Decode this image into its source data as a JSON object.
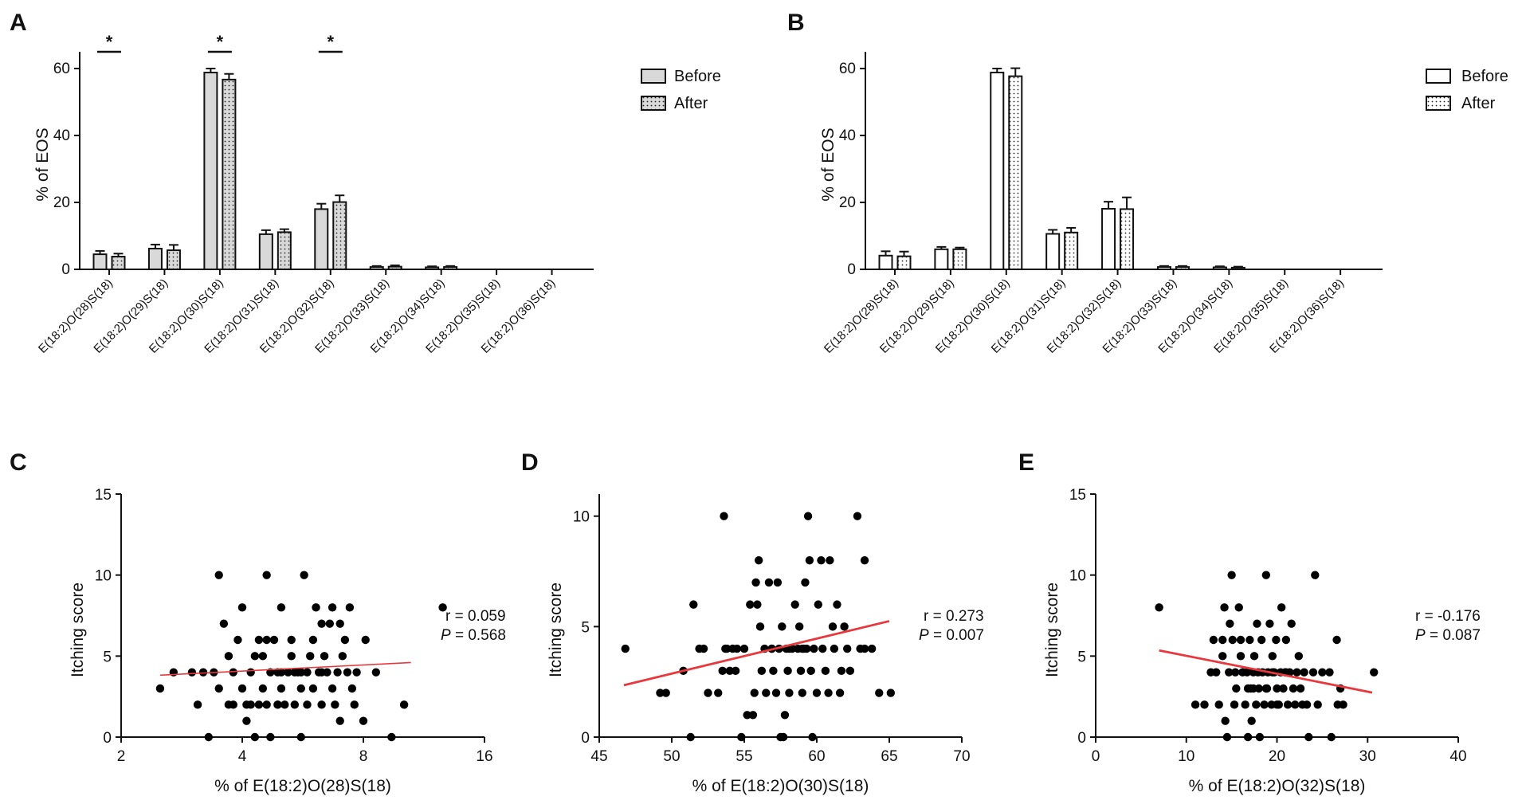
{
  "colors": {
    "bar_before_filled": "#d9d9d9",
    "bar_after_filled": "#d9d9d9",
    "bar_open": "#ffffff",
    "stroke": "#111111",
    "fit_line": "#e8383d",
    "point": "#000000"
  },
  "chart_data": [
    {
      "id": "A",
      "type": "bar",
      "panel_label": "A",
      "style": "filled",
      "ylabel": "% of EOS",
      "ylim": [
        0,
        65
      ],
      "yticks": [
        0,
        20,
        40,
        60
      ],
      "categories": [
        "E(18:2)O(28)S(18)",
        "E(18:2)O(29)S(18)",
        "E(18:2)O(30)S(18)",
        "E(18:2)O(31)S(18)",
        "E(18:2)O(32)S(18)",
        "E(18:2)O(33)S(18)",
        "E(18:2)O(34)S(18)",
        "E(18:2)O(35)S(18)",
        "E(18:2)O(36)S(18)"
      ],
      "series": [
        {
          "name": "Before",
          "values": [
            4.5,
            6.2,
            58.8,
            10.5,
            18.0,
            0.7,
            0.6,
            0,
            0
          ],
          "errors": [
            1.0,
            1.2,
            1.2,
            1.2,
            1.6,
            0.3,
            0.3,
            0,
            0
          ]
        },
        {
          "name": "After",
          "values": [
            3.8,
            5.7,
            56.7,
            11.1,
            20.1,
            0.8,
            0.7,
            0,
            0
          ],
          "errors": [
            0.9,
            1.6,
            1.7,
            0.9,
            2.0,
            0.4,
            0.3,
            0,
            0
          ]
        }
      ],
      "significance": [
        {
          "category_index": 0,
          "label": "*"
        },
        {
          "category_index": 2,
          "label": "*"
        },
        {
          "category_index": 4,
          "label": "*"
        }
      ],
      "legend": [
        "Before",
        "After"
      ]
    },
    {
      "id": "B",
      "type": "bar",
      "panel_label": "B",
      "style": "open",
      "ylabel": "% of EOS",
      "ylim": [
        0,
        65
      ],
      "yticks": [
        0,
        20,
        40,
        60
      ],
      "categories": [
        "E(18:2)O(28)S(18)",
        "E(18:2)O(29)S(18)",
        "E(18:2)O(30)S(18)",
        "E(18:2)O(31)S(18)",
        "E(18:2)O(32)S(18)",
        "E(18:2)O(33)S(18)",
        "E(18:2)O(34)S(18)",
        "E(18:2)O(35)S(18)",
        "E(18:2)O(36)S(18)"
      ],
      "series": [
        {
          "name": "Before",
          "values": [
            4.1,
            6.0,
            58.8,
            10.6,
            18.1,
            0.7,
            0.6,
            0,
            0
          ],
          "errors": [
            1.3,
            0.7,
            1.2,
            1.2,
            2.1,
            0.3,
            0.3,
            0,
            0
          ]
        },
        {
          "name": "After",
          "values": [
            3.9,
            6.0,
            57.7,
            11.0,
            18.0,
            0.7,
            0.5,
            0,
            0
          ],
          "errors": [
            1.4,
            0.5,
            2.4,
            1.4,
            3.5,
            0.3,
            0.3,
            0,
            0
          ]
        }
      ],
      "significance": [],
      "legend": [
        "Before",
        "After"
      ]
    },
    {
      "id": "C",
      "type": "scatter",
      "panel_label": "C",
      "xlabel": "% of E(18:2)O(28)S(18)",
      "ylabel": "Itching score",
      "xscale": "log2",
      "xlim": [
        2,
        16
      ],
      "xticks": [
        2,
        4,
        8,
        16
      ],
      "ylim": [
        0,
        15
      ],
      "yticks": [
        0,
        5,
        10,
        15
      ],
      "r_text": "r = 0.059",
      "p_label": "P",
      "p_value_text": " = 0.568",
      "fit": {
        "x": [
          2.5,
          10.5
        ],
        "y": [
          3.82,
          4.6
        ]
      },
      "points": [
        [
          2.5,
          3
        ],
        [
          2.7,
          4
        ],
        [
          3.0,
          4
        ],
        [
          3.1,
          2
        ],
        [
          3.3,
          0
        ],
        [
          3.2,
          4
        ],
        [
          3.6,
          7
        ],
        [
          3.4,
          4
        ],
        [
          3.5,
          3
        ],
        [
          3.5,
          10
        ],
        [
          3.7,
          5
        ],
        [
          3.7,
          2
        ],
        [
          3.8,
          4
        ],
        [
          3.9,
          6
        ],
        [
          4.0,
          8
        ],
        [
          4.0,
          3
        ],
        [
          4.1,
          1
        ],
        [
          4.2,
          2
        ],
        [
          4.2,
          4
        ],
        [
          4.3,
          5
        ],
        [
          4.3,
          0
        ],
        [
          4.4,
          6
        ],
        [
          4.4,
          2
        ],
        [
          4.5,
          5
        ],
        [
          4.5,
          3
        ],
        [
          4.6,
          10
        ],
        [
          4.6,
          6
        ],
        [
          4.7,
          4
        ],
        [
          4.7,
          0
        ],
        [
          4.8,
          6
        ],
        [
          4.9,
          2
        ],
        [
          4.9,
          4
        ],
        [
          5.0,
          8
        ],
        [
          5.0,
          3
        ],
        [
          5.1,
          2
        ],
        [
          5.2,
          4
        ],
        [
          5.3,
          5
        ],
        [
          5.3,
          6
        ],
        [
          5.4,
          2
        ],
        [
          5.5,
          4
        ],
        [
          5.6,
          3
        ],
        [
          5.6,
          0
        ],
        [
          5.7,
          10
        ],
        [
          5.8,
          4
        ],
        [
          5.8,
          2
        ],
        [
          5.9,
          5
        ],
        [
          6.0,
          6
        ],
        [
          6.0,
          3
        ],
        [
          6.1,
          8
        ],
        [
          6.2,
          4
        ],
        [
          6.3,
          2
        ],
        [
          6.3,
          7
        ],
        [
          6.4,
          5
        ],
        [
          6.5,
          4
        ],
        [
          6.6,
          7
        ],
        [
          6.7,
          3
        ],
        [
          6.7,
          8
        ],
        [
          6.8,
          2
        ],
        [
          6.9,
          4
        ],
        [
          7.0,
          7
        ],
        [
          7.0,
          1
        ],
        [
          7.1,
          5
        ],
        [
          7.2,
          6
        ],
        [
          7.3,
          4
        ],
        [
          7.4,
          8
        ],
        [
          7.5,
          3
        ],
        [
          7.6,
          2
        ],
        [
          7.7,
          4
        ],
        [
          8.0,
          1
        ],
        [
          8.1,
          6
        ],
        [
          8.6,
          4
        ],
        [
          9.4,
          0
        ],
        [
          10.1,
          2
        ],
        [
          12.6,
          8
        ],
        [
          4.1,
          2
        ],
        [
          4.9,
          2
        ],
        [
          5.4,
          4
        ],
        [
          3.8,
          2
        ],
        [
          5.0,
          4
        ],
        [
          6.3,
          4
        ],
        [
          4.6,
          2
        ],
        [
          5.6,
          4
        ]
      ]
    },
    {
      "id": "D",
      "type": "scatter",
      "panel_label": "D",
      "xlabel": "% of E(18:2)O(30)S(18)",
      "ylabel": "Itching score",
      "xscale": "linear",
      "xlim": [
        45,
        70
      ],
      "xticks": [
        45,
        50,
        55,
        60,
        65,
        70
      ],
      "ylim": [
        0,
        11
      ],
      "yticks": [
        0,
        5,
        10
      ],
      "r_text": "r = 0.273",
      "p_label": "P",
      "p_value_text": " = 0.007",
      "fit": {
        "x": [
          46.7,
          65.0
        ],
        "y": [
          2.35,
          5.25
        ]
      },
      "points": [
        [
          46.8,
          4
        ],
        [
          49.2,
          2
        ],
        [
          49.6,
          2
        ],
        [
          50.8,
          3
        ],
        [
          51.3,
          0
        ],
        [
          51.5,
          6
        ],
        [
          51.9,
          4
        ],
        [
          52.2,
          4
        ],
        [
          52.5,
          2
        ],
        [
          53.2,
          2
        ],
        [
          53.5,
          3
        ],
        [
          53.6,
          10
        ],
        [
          53.7,
          4
        ],
        [
          53.8,
          4
        ],
        [
          54.0,
          3
        ],
        [
          54.2,
          4
        ],
        [
          54.4,
          3
        ],
        [
          54.5,
          4
        ],
        [
          54.8,
          0
        ],
        [
          55.0,
          4
        ],
        [
          55.2,
          1
        ],
        [
          55.4,
          6
        ],
        [
          55.6,
          1
        ],
        [
          55.7,
          2
        ],
        [
          55.8,
          7
        ],
        [
          55.9,
          6
        ],
        [
          56.0,
          8
        ],
        [
          56.1,
          5
        ],
        [
          56.2,
          3
        ],
        [
          56.4,
          4
        ],
        [
          56.5,
          2
        ],
        [
          56.7,
          7
        ],
        [
          56.9,
          4
        ],
        [
          57.0,
          3
        ],
        [
          57.2,
          2
        ],
        [
          57.3,
          7
        ],
        [
          57.4,
          4
        ],
        [
          57.5,
          0
        ],
        [
          57.6,
          5
        ],
        [
          57.7,
          0
        ],
        [
          57.8,
          1
        ],
        [
          57.9,
          4
        ],
        [
          58.0,
          3
        ],
        [
          58.1,
          2
        ],
        [
          58.3,
          4
        ],
        [
          58.5,
          6
        ],
        [
          58.7,
          4
        ],
        [
          58.8,
          5
        ],
        [
          58.9,
          3
        ],
        [
          59.0,
          2
        ],
        [
          59.1,
          4
        ],
        [
          59.2,
          7
        ],
        [
          59.3,
          4
        ],
        [
          59.4,
          10
        ],
        [
          59.5,
          8
        ],
        [
          59.6,
          3
        ],
        [
          59.7,
          0
        ],
        [
          59.8,
          4
        ],
        [
          60.0,
          2
        ],
        [
          60.1,
          6
        ],
        [
          60.3,
          8
        ],
        [
          60.4,
          4
        ],
        [
          60.6,
          3
        ],
        [
          60.8,
          2
        ],
        [
          60.9,
          8
        ],
        [
          61.1,
          5
        ],
        [
          61.2,
          4
        ],
        [
          61.4,
          6
        ],
        [
          61.6,
          2
        ],
        [
          61.7,
          3
        ],
        [
          61.9,
          5
        ],
        [
          62.1,
          4
        ],
        [
          62.3,
          3
        ],
        [
          62.8,
          10
        ],
        [
          63.0,
          4
        ],
        [
          63.3,
          4
        ],
        [
          63.3,
          8
        ],
        [
          63.8,
          4
        ],
        [
          64.3,
          2
        ],
        [
          65.1,
          2
        ],
        [
          56.9,
          4
        ],
        [
          58.1,
          4
        ],
        [
          59.0,
          4
        ]
      ]
    },
    {
      "id": "E",
      "type": "scatter",
      "panel_label": "E",
      "xlabel": "% of E(18:2)O(32)S(18)",
      "ylabel": "Itching score",
      "xscale": "linear",
      "xlim": [
        0,
        40
      ],
      "xticks": [
        0,
        10,
        20,
        30,
        40
      ],
      "ylim": [
        0,
        15
      ],
      "yticks": [
        0,
        5,
        10,
        15
      ],
      "r_text": "r = -0.176",
      "p_label": "P",
      "p_value_text": " = 0.087",
      "fit": {
        "x": [
          7.0,
          30.5
        ],
        "y": [
          5.35,
          2.75
        ]
      },
      "points": [
        [
          7.0,
          8
        ],
        [
          11.0,
          2
        ],
        [
          12.0,
          2
        ],
        [
          12.7,
          4
        ],
        [
          13.0,
          6
        ],
        [
          13.3,
          4
        ],
        [
          13.6,
          2
        ],
        [
          14.0,
          5
        ],
        [
          14.0,
          6
        ],
        [
          14.2,
          8
        ],
        [
          14.3,
          1
        ],
        [
          14.5,
          0
        ],
        [
          14.7,
          4
        ],
        [
          14.8,
          7
        ],
        [
          15.0,
          10
        ],
        [
          15.1,
          6
        ],
        [
          15.3,
          2
        ],
        [
          15.4,
          4
        ],
        [
          15.5,
          3
        ],
        [
          15.8,
          8
        ],
        [
          16.0,
          5
        ],
        [
          16.0,
          6
        ],
        [
          16.2,
          4
        ],
        [
          16.5,
          2
        ],
        [
          16.7,
          4
        ],
        [
          16.8,
          0
        ],
        [
          17.0,
          6
        ],
        [
          17.1,
          3
        ],
        [
          17.2,
          1
        ],
        [
          17.4,
          4
        ],
        [
          17.5,
          5
        ],
        [
          17.7,
          2
        ],
        [
          17.8,
          7
        ],
        [
          17.9,
          4
        ],
        [
          18.0,
          3
        ],
        [
          18.1,
          0
        ],
        [
          18.3,
          6
        ],
        [
          18.4,
          4
        ],
        [
          18.6,
          2
        ],
        [
          18.8,
          10
        ],
        [
          18.9,
          3
        ],
        [
          19.0,
          4
        ],
        [
          19.2,
          7
        ],
        [
          19.4,
          2
        ],
        [
          19.5,
          5
        ],
        [
          19.7,
          4
        ],
        [
          19.9,
          6
        ],
        [
          20.0,
          3
        ],
        [
          20.2,
          2
        ],
        [
          20.4,
          4
        ],
        [
          20.5,
          8
        ],
        [
          20.7,
          3
        ],
        [
          20.9,
          4
        ],
        [
          21.0,
          6
        ],
        [
          21.2,
          2
        ],
        [
          21.4,
          4
        ],
        [
          21.6,
          7
        ],
        [
          21.8,
          3
        ],
        [
          22.0,
          2
        ],
        [
          22.2,
          4
        ],
        [
          22.4,
          5
        ],
        [
          22.6,
          3
        ],
        [
          22.8,
          2
        ],
        [
          23.0,
          4
        ],
        [
          23.3,
          2
        ],
        [
          23.5,
          0
        ],
        [
          24.0,
          4
        ],
        [
          24.2,
          10
        ],
        [
          24.5,
          2
        ],
        [
          25.0,
          4
        ],
        [
          25.8,
          4
        ],
        [
          26.0,
          0
        ],
        [
          26.6,
          6
        ],
        [
          26.7,
          2
        ],
        [
          27.0,
          3
        ],
        [
          27.3,
          2
        ],
        [
          30.7,
          4
        ],
        [
          21.0,
          4
        ],
        [
          19.5,
          4
        ],
        [
          17.4,
          3
        ],
        [
          20.0,
          2
        ],
        [
          16.8,
          3
        ],
        [
          18.8,
          3
        ]
      ]
    }
  ]
}
